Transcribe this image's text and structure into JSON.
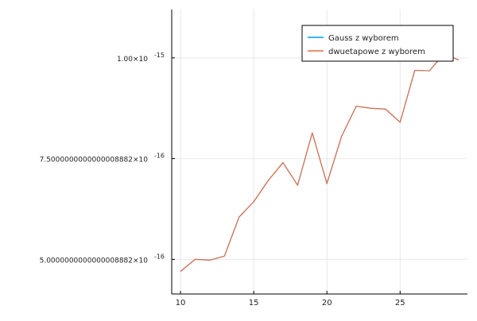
{
  "chart_data": {
    "type": "line",
    "title": "",
    "xlabel": "",
    "ylabel": "",
    "x": [
      10,
      11,
      12,
      13,
      14,
      15,
      16,
      17,
      18,
      19,
      20,
      21,
      22,
      23,
      24,
      25,
      26,
      27,
      28,
      29
    ],
    "series": [
      {
        "name": "Gauss z wyborem",
        "color": "#009af9",
        "values": [
          4.7e-16,
          5e-16,
          4.98e-16,
          5.08e-16,
          6.05e-16,
          6.43e-16,
          6.96e-16,
          7.4e-16,
          6.84e-16,
          8.14e-16,
          6.88e-16,
          8.05e-16,
          8.8e-16,
          8.75e-16,
          8.73e-16,
          8.4e-16,
          9.69e-16,
          9.68e-16,
          1.01e-15,
          9.95e-16
        ]
      },
      {
        "name": "dwuetapowe z wyborem",
        "color": "#e26f46",
        "values": [
          4.7e-16,
          5e-16,
          4.98e-16,
          5.08e-16,
          6.05e-16,
          6.43e-16,
          6.96e-16,
          7.4e-16,
          6.84e-16,
          8.14e-16,
          6.88e-16,
          8.05e-16,
          8.8e-16,
          8.75e-16,
          8.73e-16,
          8.4e-16,
          9.69e-16,
          9.68e-16,
          1.01e-15,
          9.95e-16
        ]
      }
    ],
    "xlim": [
      9.4,
      29.6
    ],
    "ylim": [
      4.14e-16,
      1.12e-15
    ],
    "x_ticks": [
      10,
      15,
      20,
      25
    ],
    "x_tick_labels": [
      "10",
      "15",
      "20",
      "25"
    ],
    "y_ticks": [
      5e-16,
      7.5e-16,
      1e-15
    ],
    "y_tick_labels": [
      {
        "mantissa": "5.0000000000000008882×10",
        "exponent": "-16"
      },
      {
        "mantissa": "7.5000000000000008882×10",
        "exponent": "-16"
      },
      {
        "mantissa": "1.00×10",
        "exponent": "-15"
      }
    ],
    "grid": true,
    "legend_position": "top-right"
  }
}
